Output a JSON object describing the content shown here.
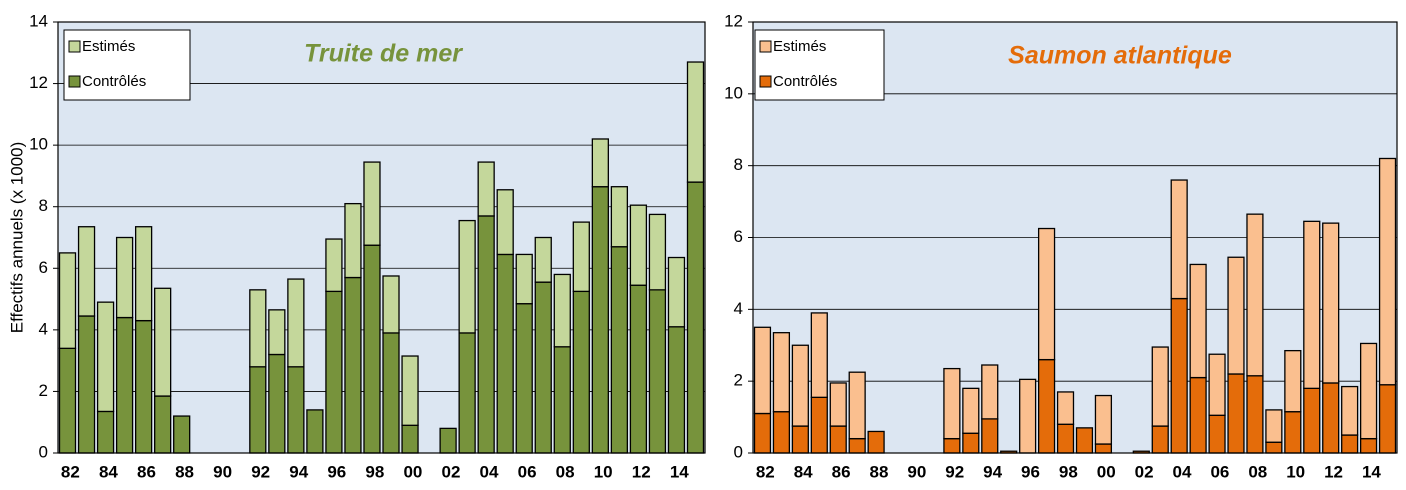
{
  "chart_data": [
    {
      "type": "stacked_bar",
      "title": "Truite de mer",
      "title_color": "#77933c",
      "ylabel": "Effectifs annuels (x 1000)",
      "categories": [
        "82",
        null,
        "84",
        null,
        "86",
        null,
        "88",
        null,
        "90",
        null,
        "92",
        null,
        "94",
        null,
        "96",
        null,
        "98",
        null,
        "00",
        null,
        "02",
        null,
        "04",
        null,
        "06",
        null,
        "08",
        null,
        "10",
        null,
        "12",
        null,
        "14",
        null
      ],
      "series": [
        {
          "name": "Contrôlés",
          "color": "#77933c",
          "values": [
            3.4,
            4.45,
            1.35,
            4.4,
            4.3,
            1.85,
            1.2,
            0,
            0,
            0,
            2.8,
            3.2,
            2.8,
            1.4,
            5.25,
            5.7,
            6.75,
            3.9,
            0.9,
            0,
            0.8,
            3.9,
            7.7,
            6.45,
            4.85,
            5.55,
            3.45,
            5.25,
            8.65,
            6.7,
            5.45,
            5.3,
            4.1,
            8.8
          ]
        },
        {
          "name": "Estimés",
          "color": "#c4d79b",
          "values": [
            3.1,
            2.9,
            3.55,
            2.6,
            3.05,
            3.5,
            0,
            0,
            0,
            0,
            2.5,
            1.45,
            2.85,
            0,
            1.7,
            2.4,
            2.7,
            1.85,
            2.25,
            0,
            0,
            3.65,
            1.75,
            2.1,
            1.6,
            1.45,
            2.35,
            2.25,
            1.55,
            1.95,
            2.6,
            2.45,
            2.25,
            3.9
          ]
        }
      ],
      "ylim": [
        0,
        14
      ],
      "yticks": [
        0,
        2,
        4,
        6,
        8,
        10,
        12,
        14
      ],
      "grid": true
    },
    {
      "type": "stacked_bar",
      "title": "Saumon atlantique",
      "title_color": "#e46c0a",
      "categories": [
        "82",
        null,
        "84",
        null,
        "86",
        null,
        "88",
        null,
        "90",
        null,
        "92",
        null,
        "94",
        null,
        "96",
        null,
        "98",
        null,
        "00",
        null,
        "02",
        null,
        "04",
        null,
        "06",
        null,
        "08",
        null,
        "10",
        null,
        "12",
        null,
        "14",
        null
      ],
      "series": [
        {
          "name": "Contrôlés",
          "color": "#e46c0a",
          "values": [
            1.1,
            1.15,
            0.75,
            1.55,
            0.75,
            0.4,
            0.6,
            0,
            0,
            0,
            0.4,
            0.55,
            0.95,
            0.05,
            0,
            2.6,
            0.8,
            0.7,
            0.25,
            0,
            0.05,
            0.75,
            4.3,
            2.1,
            1.05,
            2.2,
            2.15,
            0.3,
            1.15,
            1.8,
            1.95,
            0.5,
            0.4,
            1.9
          ]
        },
        {
          "name": "Estimés",
          "color": "#fabf8f",
          "values": [
            2.4,
            2.2,
            2.25,
            2.35,
            1.2,
            1.85,
            0,
            0,
            0,
            0,
            1.95,
            1.25,
            1.5,
            0,
            2.05,
            3.65,
            0.9,
            0,
            1.35,
            0,
            0,
            2.2,
            3.3,
            3.15,
            1.7,
            3.25,
            4.5,
            0.9,
            1.7,
            4.65,
            4.45,
            1.35,
            2.65,
            6.3
          ]
        }
      ],
      "ylim": [
        0,
        12
      ],
      "yticks": [
        0,
        2,
        4,
        6,
        8,
        10,
        12
      ],
      "grid": true
    }
  ]
}
